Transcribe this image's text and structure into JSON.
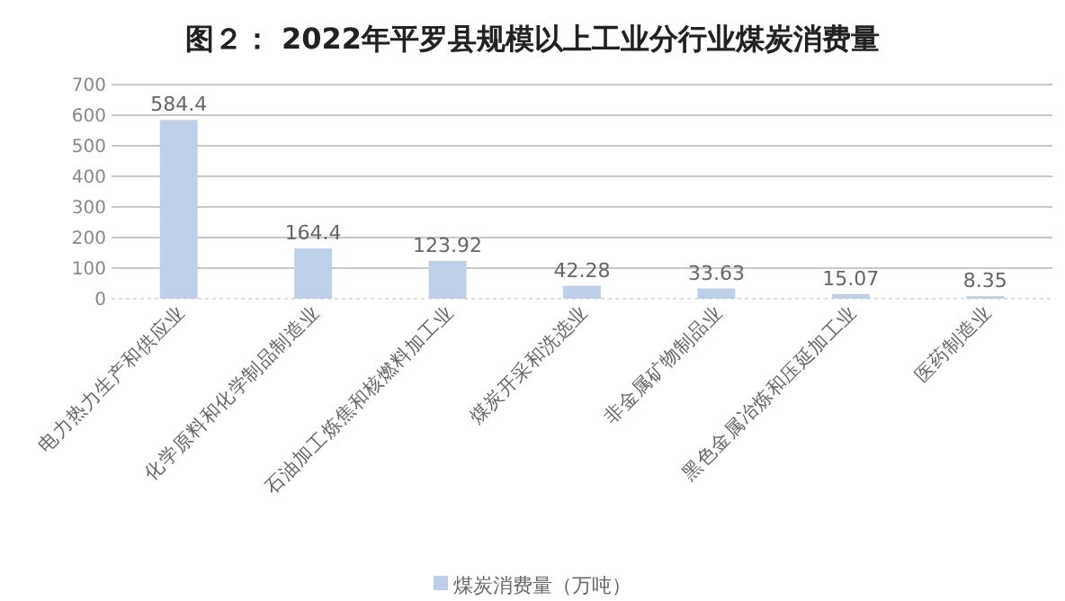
{
  "chart_data": {
    "type": "bar",
    "title": "图２： 2022年平罗县规模以上工业分行业煤炭消费量",
    "categories": [
      "电力热力生产和供应业",
      "化学原料和化学制品制造业",
      "石油加工炼焦和核燃料加工业",
      "煤炭开采和洗选业",
      "非金属矿物制品业",
      "黑色金属冶炼和压延加工业",
      "医药制造业"
    ],
    "series": [
      {
        "name": "煤炭消费量（万吨）",
        "color": "#bdd0e8",
        "values": [
          584.4,
          164.4,
          123.92,
          42.28,
          33.63,
          15.07,
          8.35
        ]
      }
    ],
    "ylim": [
      0,
      700
    ],
    "yticks": [
      0,
      100,
      200,
      300,
      400,
      500,
      600,
      700
    ],
    "grid": "y",
    "legend": "bottom",
    "data_labels": true
  }
}
